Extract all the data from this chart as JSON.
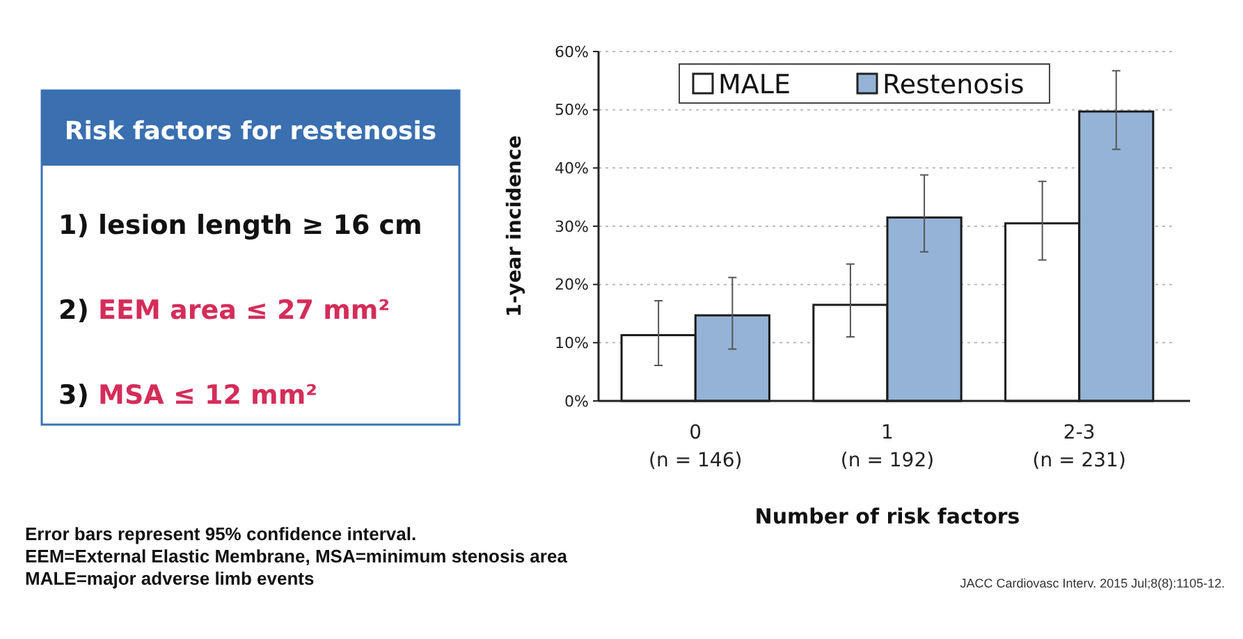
{
  "chart_data": {
    "type": "bar",
    "xlabel": "Number of risk factors",
    "ylabel": "1-year incidence",
    "categories": [
      "0\n(n = 146)",
      "1\n(n = 192)",
      "2-3\n(n = 231)"
    ],
    "series": [
      {
        "name": "MALE",
        "color": "#ffffff",
        "values": [
          11.3,
          16.5,
          30.5
        ],
        "errors": [
          [
            6.1,
            17.2
          ],
          [
            11.0,
            23.5
          ],
          [
            24.2,
            37.7
          ]
        ]
      },
      {
        "name": "Restenosis",
        "color": "#95b3d7",
        "values": [
          14.7,
          31.5,
          49.7
        ],
        "errors": [
          [
            8.9,
            21.2
          ],
          [
            25.6,
            38.8
          ],
          [
            43.2,
            56.7
          ]
        ]
      }
    ],
    "ylim": [
      0,
      60
    ],
    "yticks": [
      {
        "value": 0,
        "label": "0%"
      },
      {
        "value": 10,
        "label": "10%"
      },
      {
        "value": 20,
        "label": "20%"
      },
      {
        "value": 30,
        "label": "30%"
      },
      {
        "value": 40,
        "label": "40%"
      },
      {
        "value": 50,
        "label": "50%"
      },
      {
        "value": 60,
        "label": "60%"
      }
    ],
    "grid": "y",
    "legend": "top",
    "annotations": [
      "Risk factors for restenosis",
      "1) lesion length ≥ 16 cm",
      "2) EEM area ≤ 27 mm²",
      "3) MSA ≤ 12 mm²",
      "Error bars represent 95% confidence interval.",
      "EEM=External Elastic Membrane, MSA=minimum stenosis area",
      "MALE=major adverse limb events",
      "JACC Cardiovasc Interv. 2015 Jul;8(8):1105-12."
    ]
  }
}
